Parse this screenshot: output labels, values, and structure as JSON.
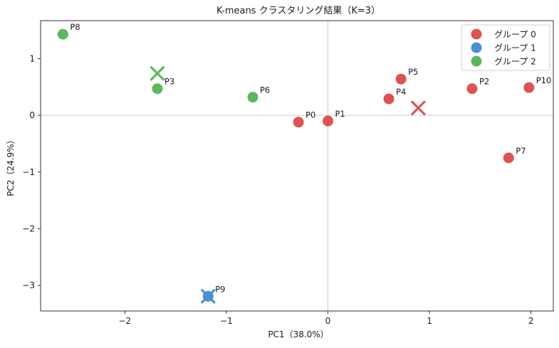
{
  "chart_data": {
    "type": "scatter",
    "title": "K-means クラスタリング結果（K=3）",
    "xlabel": "PC1（38.0%）",
    "ylabel": "PC2（24.9%）",
    "xlim": [
      -2.83,
      2.22
    ],
    "ylim": [
      -3.45,
      1.67
    ],
    "xticks": [
      -2,
      -1,
      0,
      1,
      2
    ],
    "yticks": [
      -3,
      -2,
      -1,
      0,
      1
    ],
    "tick_labels_x": [
      "−2",
      "−1",
      "0",
      "1",
      "2"
    ],
    "tick_labels_y": [
      "−3",
      "−2",
      "−1",
      "0",
      "1"
    ],
    "reference_lines": {
      "x": 0,
      "y": 0
    },
    "grid": false,
    "legend_position": "top-right",
    "series": [
      {
        "name": "グループ 0",
        "color": "#e05252",
        "points": [
          {
            "label": "P0",
            "x": -0.29,
            "y": -0.12
          },
          {
            "label": "P1",
            "x": 0.0,
            "y": -0.1
          },
          {
            "label": "P5",
            "x": 0.72,
            "y": 0.64
          },
          {
            "label": "P4",
            "x": 0.6,
            "y": 0.29
          },
          {
            "label": "P2",
            "x": 1.42,
            "y": 0.47
          },
          {
            "label": "P10",
            "x": 1.98,
            "y": 0.49
          },
          {
            "label": "P7",
            "x": 1.78,
            "y": -0.75
          }
        ],
        "centroid": {
          "x": 0.89,
          "y": 0.13
        }
      },
      {
        "name": "グループ 1",
        "color": "#4a8fd4",
        "points": [
          {
            "label": "P9",
            "x": -1.18,
            "y": -3.19
          }
        ],
        "centroid": {
          "x": -1.18,
          "y": -3.19
        }
      },
      {
        "name": "グループ 2",
        "color": "#5cb85c",
        "points": [
          {
            "label": "P8",
            "x": -2.61,
            "y": 1.43
          },
          {
            "label": "P3",
            "x": -1.68,
            "y": 0.47
          },
          {
            "label": "P6",
            "x": -0.74,
            "y": 0.32
          }
        ],
        "centroid": {
          "x": -1.68,
          "y": 0.74
        }
      }
    ]
  }
}
